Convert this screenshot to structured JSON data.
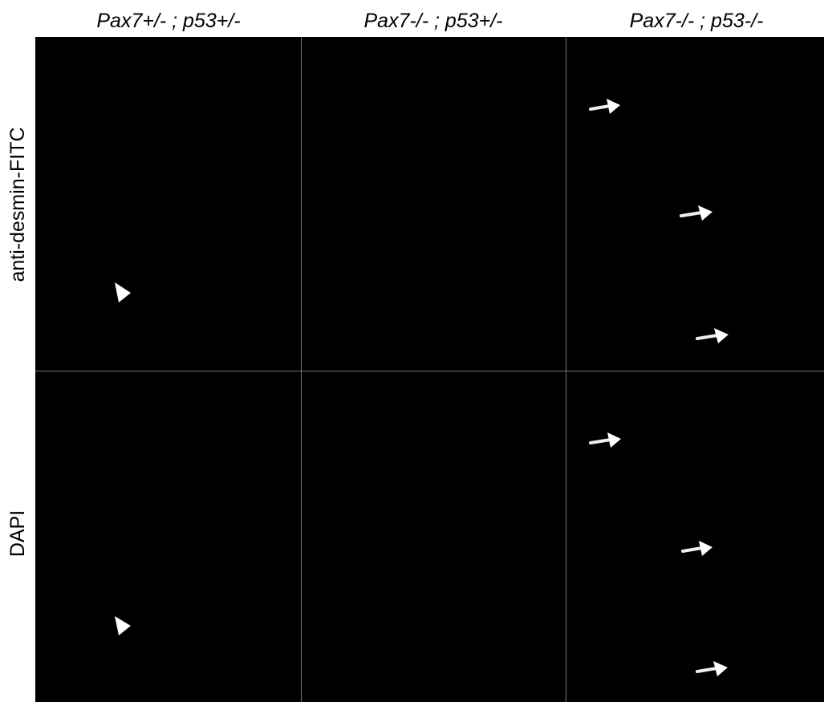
{
  "columns": [
    "Pax7+/- ; p53+/-",
    "Pax7-/- ; p53+/-",
    "Pax7-/- ; p53-/-"
  ],
  "rows": [
    "anti-desmin-FITC",
    "DAPI"
  ]
}
